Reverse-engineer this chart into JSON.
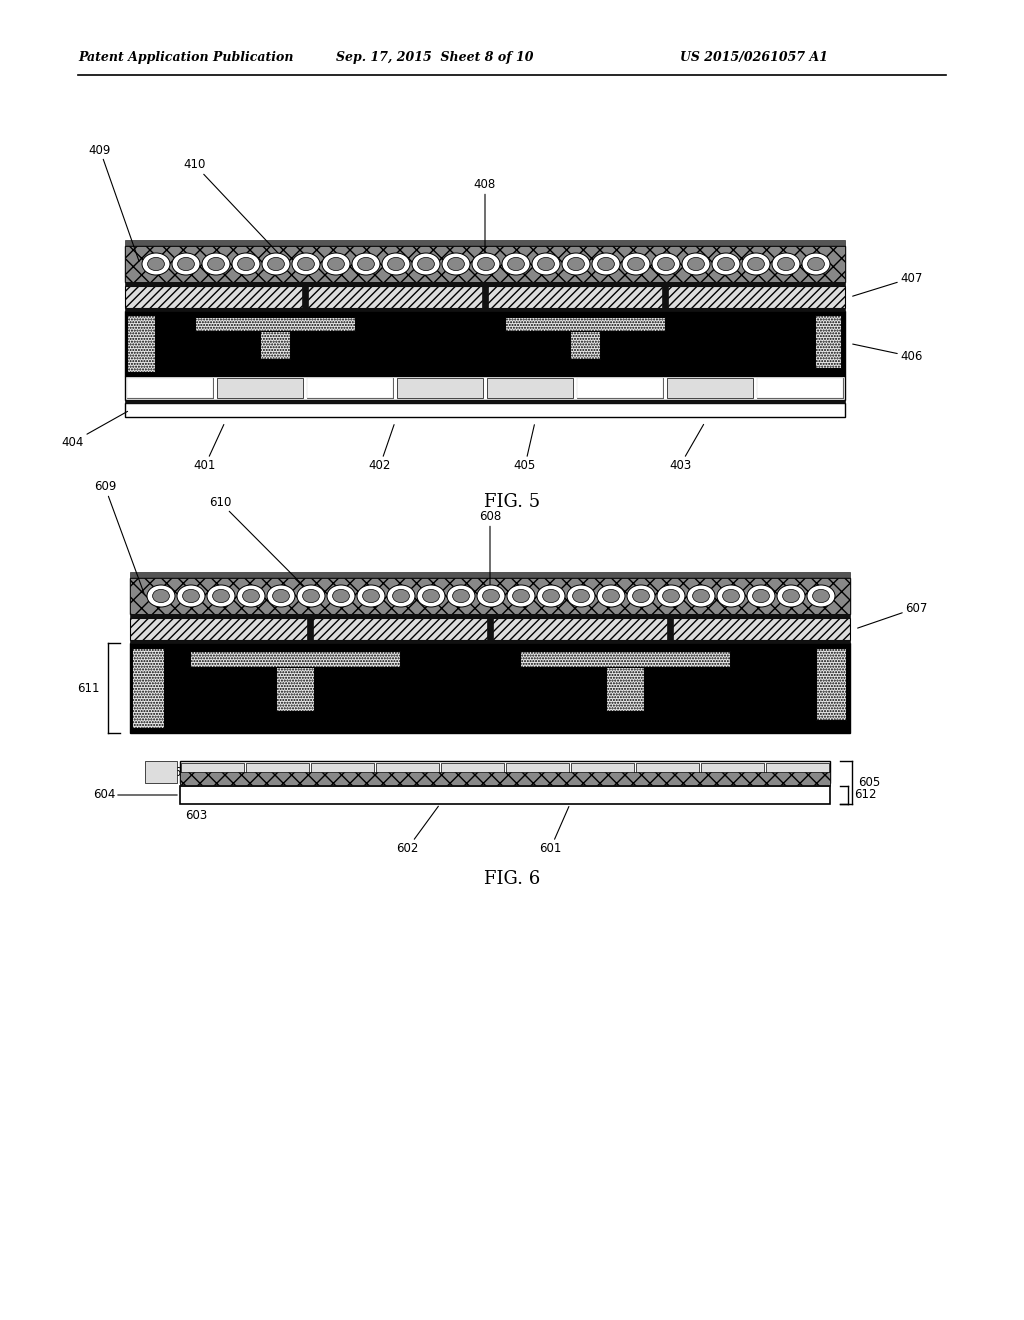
{
  "title_left": "Patent Application Publication",
  "title_mid": "Sep. 17, 2015  Sheet 8 of 10",
  "title_right": "US 2015/0261057 A1",
  "fig5_label": "FIG. 5",
  "fig6_label": "FIG. 6",
  "bg_color": "#ffffff"
}
